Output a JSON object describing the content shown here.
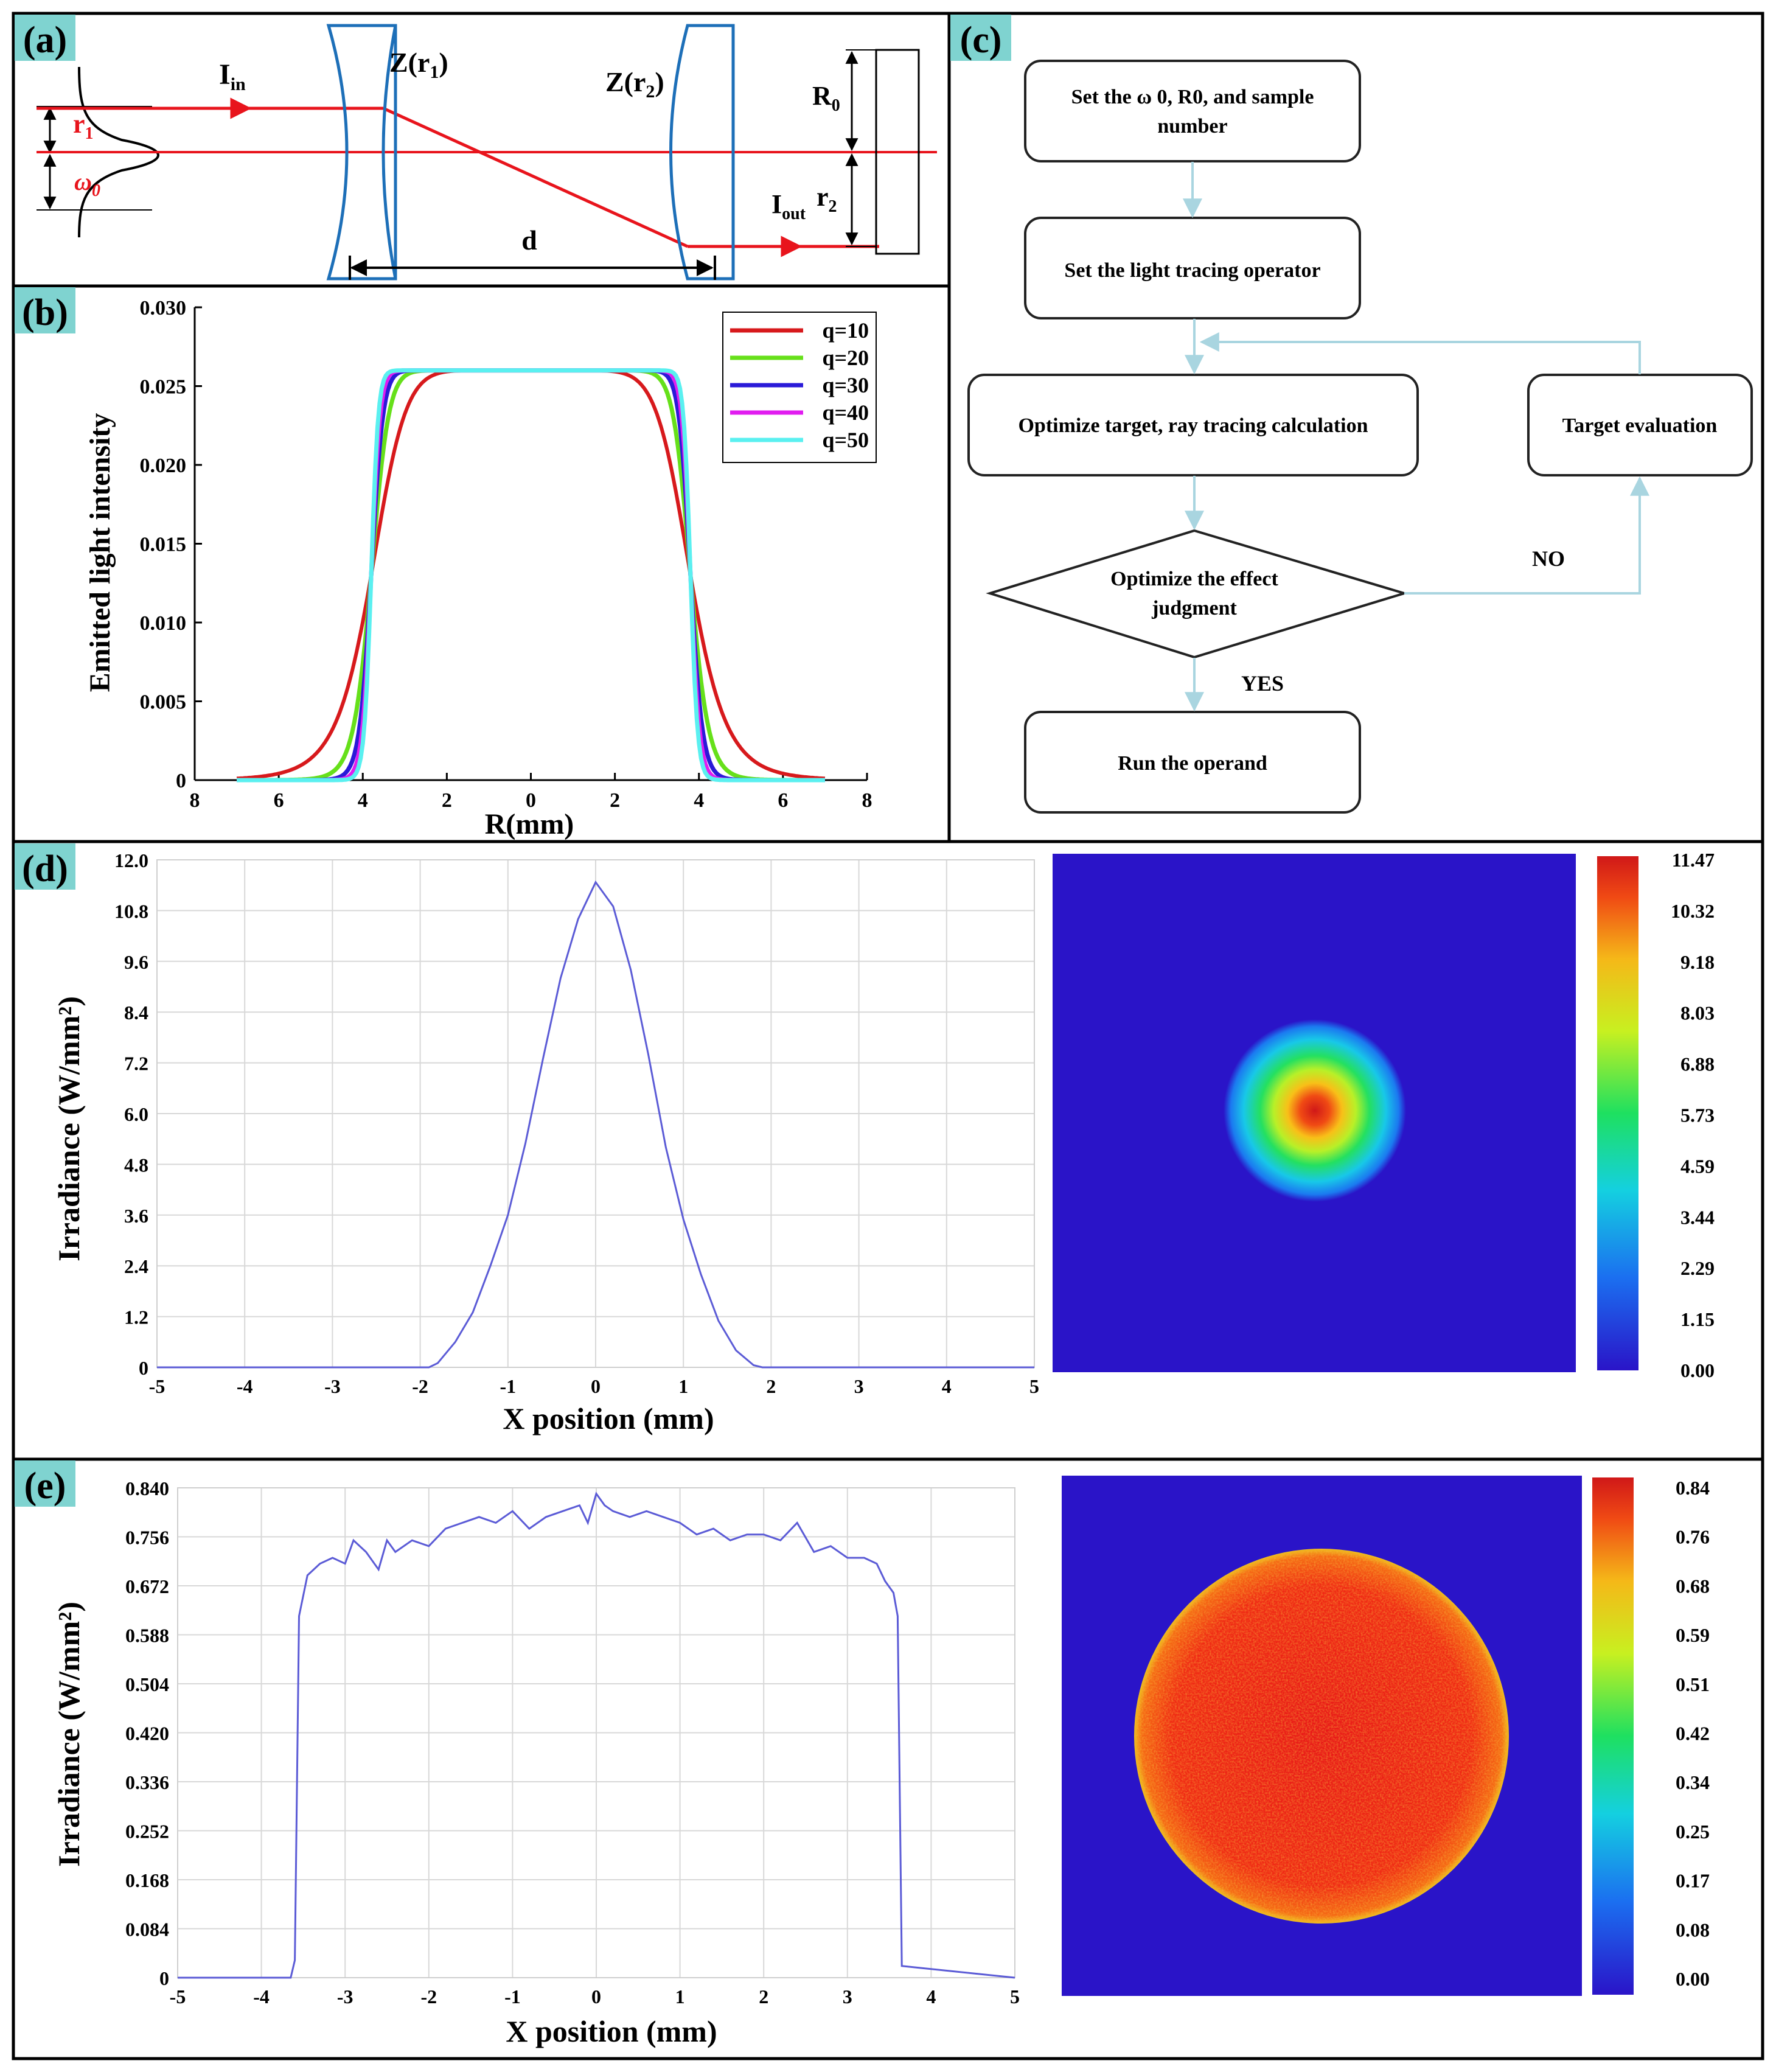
{
  "panels": {
    "a": {
      "label": "(a)",
      "I_in": "I",
      "I_in_sub": "in",
      "Z1": "Z(r",
      "Z1_sub": "1",
      "Z_close": ")",
      "Z2": "Z(r",
      "Z2_sub": "2",
      "r1": "r",
      "r1_sub": "1",
      "w0": "ω",
      "w0_sub": "0",
      "R0": "R",
      "R0_sub": "0",
      "r2": "r",
      "r2_sub": "2",
      "I_out": "I",
      "I_out_sub": "out",
      "d": "d"
    },
    "b": {
      "label": "(b)"
    },
    "c": {
      "label": "(c)",
      "steps": [
        {
          "line1": "Set the ω 0, R0, and sample",
          "line2": "number"
        },
        {
          "line1": "Set the light tracing operator",
          "line2": ""
        },
        {
          "line1": "Optimize target, ray tracing calculation",
          "line2": ""
        },
        {
          "line1": "Target evaluation",
          "line2": ""
        },
        {
          "line1": "Optimize the effect",
          "line2": "judgment"
        },
        {
          "line1": "Run the operand",
          "line2": ""
        }
      ],
      "no": "NO",
      "yes": "YES"
    },
    "d": {
      "label": "(d)"
    },
    "e": {
      "label": "(e)"
    }
  },
  "colors": {
    "border": "#000000",
    "beam": "#e8141c",
    "lens": "#1d6fb8",
    "label_bg": "#7fd3d0",
    "flow_arrow": "#a9d5e0",
    "plot_line": "#5b5bd6",
    "heat_bg": "#2a14c8"
  },
  "chart_data": [
    {
      "id": "b",
      "type": "line",
      "title": "",
      "xlabel": "R(mm)",
      "ylabel": "Emitted light intensity",
      "x_range": [
        -8,
        8
      ],
      "ylim": [
        0,
        0.03
      ],
      "x_tick_values": [
        -8,
        -6,
        -4,
        -2,
        0,
        2,
        4,
        6,
        8
      ],
      "x_tick_labels": [
        "8",
        "6",
        "4",
        "2",
        "0",
        "2",
        "4",
        "6",
        "8"
      ],
      "y_ticks": [
        0,
        0.005,
        0.01,
        0.015,
        0.02,
        0.025,
        0.03
      ],
      "y_tick_labels": [
        "0",
        "0.005",
        "0.010",
        "0.015",
        "0.020",
        "0.025",
        "0.030"
      ],
      "legend_position": "top-right",
      "plateau": 0.026,
      "edge_radius": 3.8,
      "x_span": [
        -7,
        7
      ],
      "series": [
        {
          "name": "q=10",
          "q": 10,
          "color": "#d7191c"
        },
        {
          "name": "q=20",
          "q": 20,
          "color": "#66e01a"
        },
        {
          "name": "q=30",
          "q": 30,
          "color": "#2a1ad8"
        },
        {
          "name": "q=40",
          "q": 40,
          "color": "#e11cf0"
        },
        {
          "name": "q=50",
          "q": 50,
          "color": "#5af0f0"
        }
      ]
    },
    {
      "id": "d",
      "type": "line",
      "xlabel": "X position (mm)",
      "ylabel": "Irradiance (W/mm²)",
      "x_range": [
        -5,
        5
      ],
      "ylim": [
        0,
        12
      ],
      "x_ticks": [
        -5,
        -4,
        -3,
        -2,
        -1,
        0,
        1,
        2,
        3,
        4,
        5
      ],
      "y_ticks": [
        0,
        1.2,
        2.4,
        3.6,
        4.8,
        6.0,
        7.2,
        8.4,
        9.6,
        10.8,
        12.0
      ],
      "y_tick_labels": [
        "0",
        "1.2",
        "2.4",
        "3.6",
        "4.8",
        "6.0",
        "7.2",
        "8.4",
        "9.6",
        "10.8",
        "12.0"
      ],
      "grid": true,
      "x": [
        -5,
        -1.9,
        -1.8,
        -1.6,
        -1.4,
        -1.2,
        -1.0,
        -0.8,
        -0.6,
        -0.4,
        -0.2,
        0,
        0.2,
        0.4,
        0.6,
        0.8,
        1.0,
        1.2,
        1.4,
        1.6,
        1.8,
        1.9,
        5
      ],
      "y": [
        0,
        0,
        0.1,
        0.6,
        1.3,
        2.4,
        3.6,
        5.3,
        7.3,
        9.2,
        10.6,
        11.47,
        10.9,
        9.4,
        7.4,
        5.2,
        3.5,
        2.2,
        1.1,
        0.4,
        0.05,
        0,
        0
      ],
      "colorbar": {
        "labels": [
          "11.47",
          "10.32",
          "9.18",
          "8.03",
          "6.88",
          "5.73",
          "4.59",
          "3.44",
          "2.29",
          "1.15",
          "0.00"
        ],
        "min": 0,
        "max": 11.47
      },
      "heatmap": {
        "shape": "gaussian-spot",
        "peak": 11.47,
        "center_x_mm": 0,
        "center_y_mm": 0
      }
    },
    {
      "id": "e",
      "type": "line",
      "xlabel": "X position (mm)",
      "ylabel": "Irradiance (W/mm²)",
      "x_range": [
        -5,
        5
      ],
      "ylim": [
        0,
        0.84
      ],
      "x_ticks": [
        -5,
        -4,
        -3,
        -2,
        -1,
        0,
        1,
        2,
        3,
        4,
        5
      ],
      "y_ticks": [
        0,
        0.084,
        0.168,
        0.252,
        0.336,
        0.42,
        0.504,
        0.588,
        0.672,
        0.756,
        0.84
      ],
      "y_tick_labels": [
        "0",
        "0.084",
        "0.168",
        "0.252",
        "0.336",
        "0.420",
        "0.504",
        "0.588",
        "0.672",
        "0.756",
        "0.840"
      ],
      "grid": true,
      "x": [
        -5,
        -3.65,
        -3.6,
        -3.55,
        -3.45,
        -3.3,
        -3.15,
        -3.0,
        -2.9,
        -2.75,
        -2.6,
        -2.5,
        -2.4,
        -2.2,
        -2.0,
        -1.8,
        -1.6,
        -1.4,
        -1.2,
        -1.0,
        -0.8,
        -0.6,
        -0.4,
        -0.2,
        -0.1,
        0,
        0.1,
        0.2,
        0.4,
        0.6,
        0.8,
        1.0,
        1.2,
        1.4,
        1.6,
        1.8,
        2.0,
        2.2,
        2.4,
        2.6,
        2.8,
        3.0,
        3.2,
        3.35,
        3.45,
        3.55,
        3.6,
        3.65,
        5
      ],
      "y": [
        0,
        0,
        0.03,
        0.62,
        0.69,
        0.71,
        0.72,
        0.71,
        0.75,
        0.73,
        0.7,
        0.75,
        0.73,
        0.75,
        0.74,
        0.77,
        0.78,
        0.79,
        0.78,
        0.8,
        0.77,
        0.79,
        0.8,
        0.81,
        0.78,
        0.83,
        0.81,
        0.8,
        0.79,
        0.8,
        0.79,
        0.78,
        0.76,
        0.77,
        0.75,
        0.76,
        0.76,
        0.75,
        0.78,
        0.73,
        0.74,
        0.72,
        0.72,
        0.71,
        0.68,
        0.66,
        0.62,
        0.02,
        0
      ],
      "colorbar": {
        "labels": [
          "0.84",
          "0.76",
          "0.68",
          "0.59",
          "0.51",
          "0.42",
          "0.34",
          "0.25",
          "0.17",
          "0.08",
          "0.00"
        ],
        "min": 0,
        "max": 0.84
      },
      "heatmap": {
        "shape": "flat-top-disk",
        "level": 0.78,
        "radius_mm": 3.6
      }
    }
  ]
}
